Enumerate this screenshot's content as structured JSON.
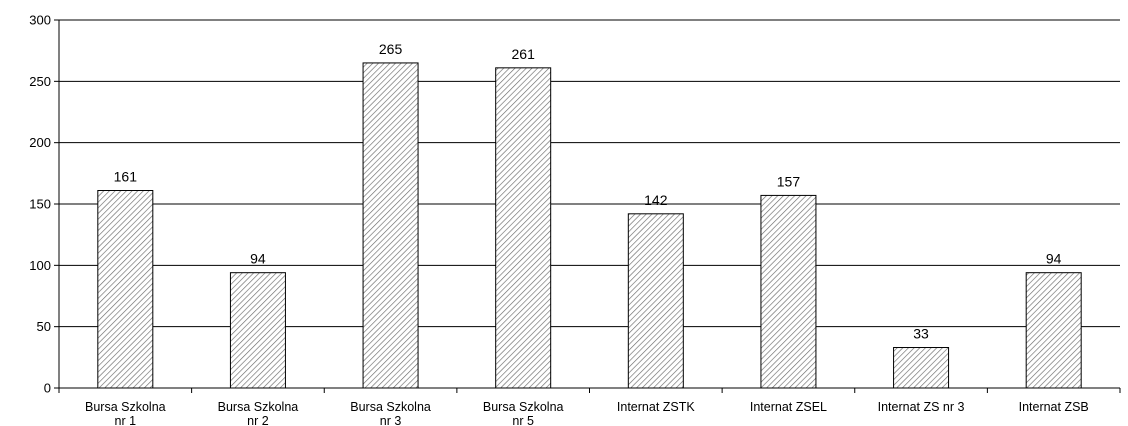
{
  "chart_data": {
    "type": "bar",
    "categories": [
      [
        "Bursa Szkolna",
        "nr 1"
      ],
      [
        "Bursa Szkolna",
        "nr 2"
      ],
      [
        "Bursa Szkolna",
        "nr 3"
      ],
      [
        "Bursa Szkolna",
        "nr 5"
      ],
      [
        "Internat ZSTK"
      ],
      [
        "Internat ZSEL"
      ],
      [
        "Internat  ZS nr 3"
      ],
      [
        "Internat ZSB"
      ]
    ],
    "values": [
      161,
      94,
      265,
      261,
      142,
      157,
      33,
      94
    ],
    "ylim": [
      0,
      300
    ],
    "yticks": [
      0,
      50,
      100,
      150,
      200,
      250,
      300
    ],
    "grid": true,
    "bar_fill": "hatched",
    "colors": {
      "bar_stroke": "#000000",
      "hatch": "#6b6b6b",
      "grid": "#000000"
    }
  }
}
